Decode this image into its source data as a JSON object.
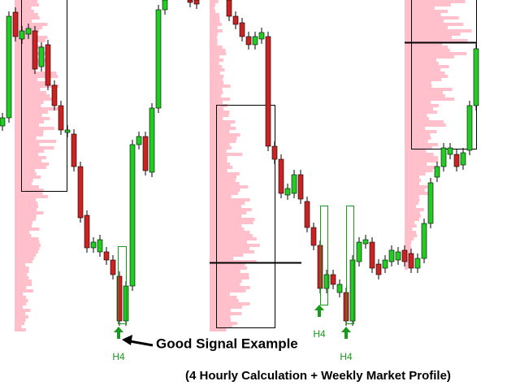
{
  "annotation": "Good Signal Example",
  "signals": [
    "H4",
    "H4",
    "H4"
  ],
  "caption": "(4 Hourly Calculation + Weekly Market Profile)"
}
